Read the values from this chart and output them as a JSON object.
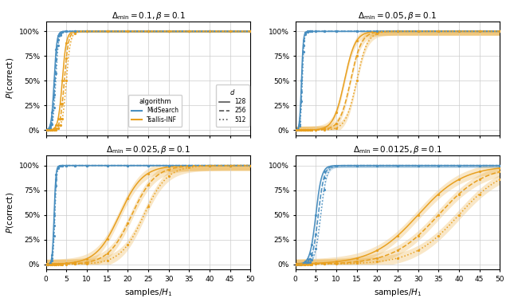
{
  "blue": "#4a8fc0",
  "orange": "#e8a020",
  "titles": [
    "$\\Delta_{\\min} = 0.1, \\beta = 0.1$",
    "$\\Delta_{\\min} = 0.05, \\beta = 0.1$",
    "$\\Delta_{\\min} = 0.025, \\beta = 0.1$",
    "$\\Delta_{\\min} = 0.0125, \\beta = 0.1$"
  ],
  "panel_params": [
    {
      "bc": 2.0,
      "bs": 3.0,
      "oc": 4.0,
      "os": 2.0,
      "b_do": [
        0,
        0.2,
        0.4
      ],
      "o_do": [
        0,
        0.5,
        1.0
      ],
      "bw_b": 0.008,
      "bw_o": 0.01
    },
    {
      "bc": 1.5,
      "bs": 4.5,
      "oc": 12.0,
      "os": 0.75,
      "b_do": [
        0,
        0.1,
        0.2
      ],
      "o_do": [
        0,
        1.5,
        3.0
      ],
      "bw_b": 0.004,
      "bw_o": 0.04
    },
    {
      "bc": 2.0,
      "bs": 4.5,
      "oc": 18.0,
      "os": 0.35,
      "b_do": [
        0,
        0.1,
        0.2
      ],
      "o_do": [
        0,
        3.0,
        6.0
      ],
      "bw_b": 0.006,
      "bw_o": 0.05
    },
    {
      "bc": 5.0,
      "bs": 1.4,
      "oc": 30.0,
      "os": 0.18,
      "b_do": [
        0,
        0.6,
        1.2
      ],
      "o_do": [
        0,
        5.0,
        10.0
      ],
      "bw_b": 0.018,
      "bw_o": 0.05
    }
  ],
  "d_styles": [
    "-",
    "--",
    ":"
  ],
  "d_labels": [
    "128",
    "256",
    "512"
  ],
  "xticks": [
    0,
    5,
    10,
    15,
    20,
    25,
    30,
    35,
    40,
    45,
    50
  ],
  "yticks": [
    0,
    0.25,
    0.5,
    0.75,
    1.0
  ],
  "ytick_labels": [
    "0%",
    "25%",
    "50%",
    "75%",
    "100%"
  ],
  "marker_x": [
    0,
    0.5,
    1,
    1.5,
    2,
    2.5,
    3,
    3.5,
    4,
    5,
    7,
    10,
    15,
    20,
    25,
    30,
    35,
    40,
    45,
    50
  ]
}
